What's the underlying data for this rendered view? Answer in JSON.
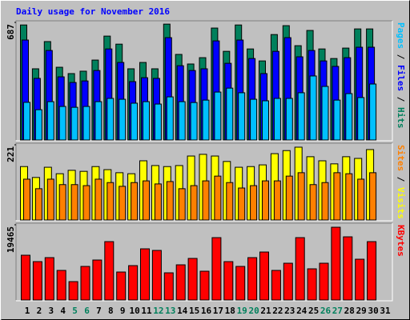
{
  "chart_data": [
    {
      "type": "bar",
      "title": "Daily usage for November 2016",
      "title_color": "#0000ff",
      "legend_separator": " / ",
      "ylim": [
        0,
        687
      ],
      "yticks": [
        687
      ],
      "series": [
        {
          "name": "Pages",
          "color": "#00c0ff",
          "values": [
            220,
            177,
            224,
            196,
            191,
            196,
            224,
            243,
            238,
            215,
            224,
            210,
            252,
            224,
            219,
            233,
            280,
            303,
            276,
            238,
            229,
            243,
            243,
            276,
            374,
            313,
            233,
            271,
            248,
            327,
            null
          ]
        },
        {
          "name": "Files",
          "color": "#0000ff",
          "values": [
            584,
            360,
            523,
            369,
            336,
            345,
            406,
            532,
            453,
            341,
            364,
            360,
            598,
            434,
            406,
            416,
            579,
            448,
            584,
            476,
            388,
            518,
            598,
            486,
            523,
            462,
            430,
            481,
            542,
            542,
            null
          ]
        },
        {
          "name": "Hits",
          "color": "#00805c",
          "values": [
            672,
            416,
            575,
            425,
            388,
            402,
            467,
            607,
            560,
            416,
            453,
            416,
            677,
            500,
            444,
            481,
            654,
            518,
            672,
            532,
            462,
            616,
            668,
            551,
            640,
            532,
            476,
            537,
            649,
            649,
            null
          ]
        }
      ]
    },
    {
      "type": "bar",
      "legend_separator": " / ",
      "ylim": [
        0,
        221
      ],
      "yticks": [
        221
      ],
      "series": [
        {
          "name": "Sites",
          "color": "#ff8000",
          "values": [
            120,
            92,
            120,
            104,
            104,
            101,
            120,
            110,
            99,
            110,
            115,
            106,
            113,
            92,
            101,
            115,
            129,
            110,
            94,
            101,
            115,
            115,
            129,
            139,
            104,
            110,
            139,
            136,
            120,
            139,
            null
          ]
        },
        {
          "name": "Visits",
          "color": "#ffff00",
          "values": [
            157,
            125,
            155,
            136,
            146,
            143,
            157,
            148,
            139,
            136,
            174,
            160,
            157,
            160,
            188,
            193,
            188,
            172,
            155,
            157,
            162,
            195,
            204,
            214,
            186,
            174,
            165,
            186,
            181,
            207,
            null
          ]
        }
      ]
    },
    {
      "type": "bar",
      "ylim": [
        0,
        19465
      ],
      "yticks": [
        19465
      ],
      "categories": [
        "1",
        "2",
        "3",
        "4",
        "5",
        "6",
        "7",
        "8",
        "9",
        "10",
        "11",
        "12",
        "13",
        "14",
        "15",
        "16",
        "17",
        "18",
        "19",
        "20",
        "21",
        "22",
        "23",
        "24",
        "25",
        "26",
        "27",
        "28",
        "29",
        "30",
        "31"
      ],
      "weekend_indices": [
        4,
        5,
        11,
        12,
        18,
        19,
        25,
        26
      ],
      "weekend_color": "#00805c",
      "series": [
        {
          "name": "KBytes",
          "color": "#ff0000",
          "values": [
            11591,
            9936,
            10971,
            7659,
            4761,
            8694,
            10350,
            15111,
            7245,
            8901,
            13248,
            12834,
            7038,
            9108,
            10764,
            7452,
            16146,
            9936,
            8694,
            10971,
            12420,
            7659,
            9522,
            16146,
            8073,
            9522,
            18837,
            16353,
            10557,
            15111,
            null
          ]
        }
      ]
    }
  ]
}
